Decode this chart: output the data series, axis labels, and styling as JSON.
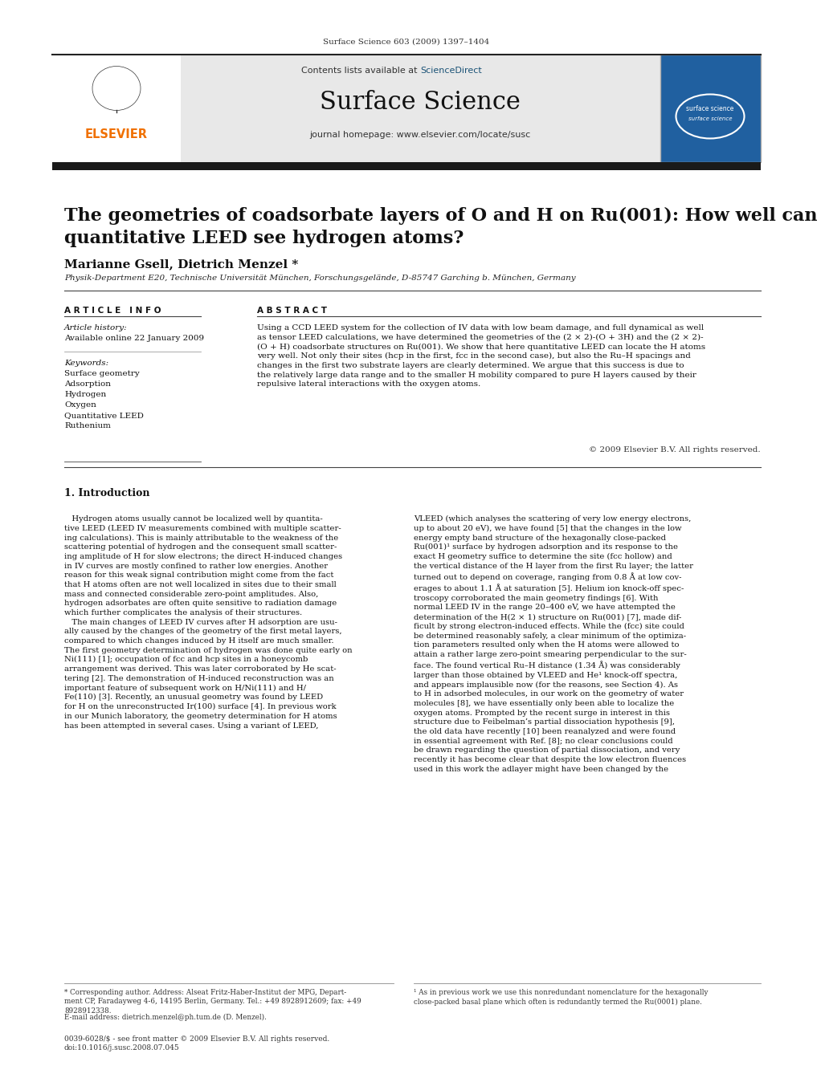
{
  "journal_info": "Surface Science 603 (2009) 1397–1404",
  "contents_text": "Contents lists available at ",
  "sciencedirect_text": "ScienceDirect",
  "journal_name": "Surface Science",
  "journal_homepage": "journal homepage: www.elsevier.com/locate/susc",
  "title": "The geometries of coadsorbate layers of O and H on Ru(001): How well can\nquantitative LEED see hydrogen atoms?",
  "authors": "Marianne Gsell, Dietrich Menzel *",
  "affiliation": "Physik-Department E20, Technische Universität München, Forschungsgelände, D-85747 Garching b. München, Germany",
  "article_info_header": "A R T I C L E   I N F O",
  "abstract_header": "A B S T R A C T",
  "article_history_label": "Article history:",
  "available_online": "Available online 22 January 2009",
  "keywords_label": "Keywords:",
  "keywords": [
    "Surface geometry",
    "Adsorption",
    "Hydrogen",
    "Oxygen",
    "Quantitative LEED",
    "Ruthenium"
  ],
  "abstract_text": "Using a CCD LEED system for the collection of IV data with low beam damage, and full dynamical as well\nas tensor LEED calculations, we have determined the geometries of the (2 × 2)-(O + 3H) and the (2 × 2)-\n(O + H) coadsorbate structures on Ru(001). We show that here quantitative LEED can locate the H atoms\nvery well. Not only their sites (hcp in the first, fcc in the second case), but also the Ru–H spacings and\nchanges in the first two substrate layers are clearly determined. We argue that this success is due to\nthe relatively large data range and to the smaller H mobility compared to pure H layers caused by their\nrepulsive lateral interactions with the oxygen atoms.",
  "copyright_text": "© 2009 Elsevier B.V. All rights reserved.",
  "section1_title": "1. Introduction",
  "section1_col1": "   Hydrogen atoms usually cannot be localized well by quantita-\ntive LEED (LEED IV measurements combined with multiple scatter-\ning calculations). This is mainly attributable to the weakness of the\nscattering potential of hydrogen and the consequent small scatter-\ning amplitude of H for slow electrons; the direct H-induced changes\nin IV curves are mostly confined to rather low energies. Another\nreason for this weak signal contribution might come from the fact\nthat H atoms often are not well localized in sites due to their small\nmass and connected considerable zero-point amplitudes. Also,\nhydrogen adsorbates are often quite sensitive to radiation damage\nwhich further complicates the analysis of their structures.\n   The main changes of LEED IV curves after H adsorption are usu-\nally caused by the changes of the geometry of the first metal layers,\ncompared to which changes induced by H itself are much smaller.\nThe first geometry determination of hydrogen was done quite early on\nNi(111) [1]; occupation of fcc and hcp sites in a honeycomb\narrangement was derived. This was later corroborated by He scat-\ntering [2]. The demonstration of H-induced reconstruction was an\nimportant feature of subsequent work on H/Ni(111) and H/\nFe(110) [3]. Recently, an unusual geometry was found by LEED\nfor H on the unreconstructed Ir(100) surface [4]. In previous work\nin our Munich laboratory, the geometry determination for H atoms\nhas been attempted in several cases. Using a variant of LEED,",
  "section1_col2": "VLEED (which analyses the scattering of very low energy electrons,\nup to about 20 eV), we have found [5] that the changes in the low\nenergy empty band structure of the hexagonally close-packed\nRu(001)¹ surface by hydrogen adsorption and its response to the\nexact H geometry suffice to determine the site (fcc hollow) and\nthe vertical distance of the H layer from the first Ru layer; the latter\nturned out to depend on coverage, ranging from 0.8 Å at low cov-\nerages to about 1.1 Å at saturation [5]. Helium ion knock-off spec-\ntroscopy corroborated the main geometry findings [6]. With\nnormal LEED IV in the range 20–400 eV, we have attempted the\ndetermination of the H(2 × 1) structure on Ru(001) [7], made dif-\nficult by strong electron-induced effects. While the (fcc) site could\nbe determined reasonably safely, a clear minimum of the optimiza-\ntion parameters resulted only when the H atoms were allowed to\nattain a rather large zero-point smearing perpendicular to the sur-\nface. The found vertical Ru–H distance (1.34 Å) was considerably\nlarger than those obtained by VLEED and He¹ knock-off spectra,\nand appears implausible now (for the reasons, see Section 4). As\nto H in adsorbed molecules, in our work on the geometry of water\nmolecules [8], we have essentially only been able to localize the\noxygen atoms. Prompted by the recent surge in interest in this\nstructure due to Feibelman’s partial dissociation hypothesis [9],\nthe old data have recently [10] been reanalyzed and were found\nin essential agreement with Ref. [8]; no clear conclusions could\nbe drawn regarding the question of partial dissociation, and very\nrecently it has become clear that despite the low electron fluences\nused in this work the adlayer might have been changed by the",
  "footnote1": "* Corresponding author. Address: Alseat Fritz-Haber-Institut der MPG, Depart-\nment CP, Faradayweg 4-6, 14195 Berlin, Germany. Tel.: +49 8928912609; fax: +49\n8928912338.",
  "footnote1_email": "E-mail address: dietrich.menzel@ph.tum.de (D. Menzel).",
  "footnote2": "¹ As in previous work we use this nonredundant nomenclature for the hexagonally\nclose-packed basal plane which often is redundantly termed the Ru(0001) plane.",
  "footer_left": "0039-6028/$ - see front matter © 2009 Elsevier B.V. All rights reserved.\ndoi:10.1016/j.susc.2008.07.045",
  "header_bg_color": "#e8e8e8",
  "elsevier_color": "#f07000",
  "sciencedirect_color": "#1a5276",
  "top_bar_color": "#1a1a1a",
  "background_color": "#ffffff",
  "text_color": "#000000"
}
